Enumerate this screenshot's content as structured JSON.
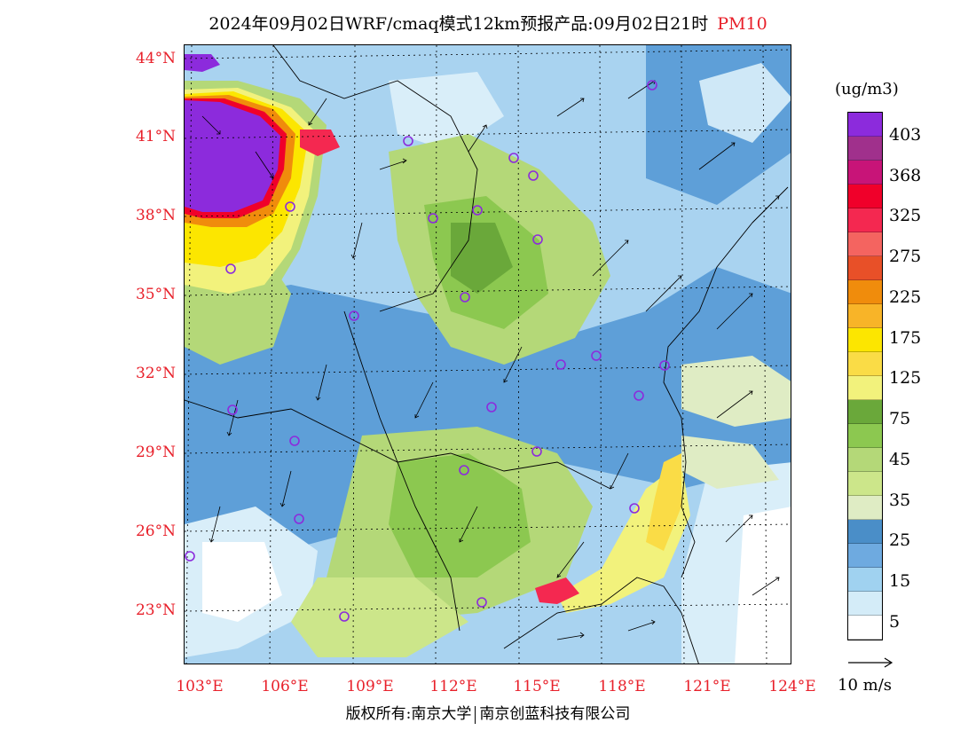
{
  "title": {
    "main": "2024年09月02日WRF/cmaq模式12km预报产品:09月02日21时",
    "pollutant": "PM10",
    "pollutant_color": "#e8202a"
  },
  "map": {
    "lat_labels": [
      "44°N",
      "41°N",
      "38°N",
      "35°N",
      "32°N",
      "29°N",
      "26°N",
      "23°N"
    ],
    "lon_labels": [
      "103°E",
      "106°E",
      "109°E",
      "112°E",
      "115°E",
      "118°E",
      "121°E",
      "124°E"
    ],
    "label_color": "#e8202a",
    "background_color": "#ffffff",
    "field": "PM10 concentration with wind vectors",
    "graticule": "dotted"
  },
  "legend": {
    "unit": "(ug/m3)",
    "labels": [
      "403",
      "368",
      "325",
      "275",
      "225",
      "175",
      "125",
      "75",
      "45",
      "35",
      "25",
      "15",
      "5"
    ],
    "colors": [
      "#8c2bdc",
      "#a0308c",
      "#c81478",
      "#f0002a",
      "#f42850",
      "#f46460",
      "#e85028",
      "#f08c0c",
      "#f8b428",
      "#fce600",
      "#fadc46",
      "#f2f27c",
      "#6aa83a",
      "#8cc850",
      "#b4d878",
      "#cce68a",
      "#dfecc4",
      "#4a8ec8",
      "#6eaae0",
      "#a0d2f0",
      "#d4ecf8",
      "#ffffff"
    ]
  },
  "wind_reference": {
    "label": "10 m/s"
  },
  "footer": {
    "left": "版权所有:南京大学",
    "right": "南京创蓝科技有限公司"
  }
}
